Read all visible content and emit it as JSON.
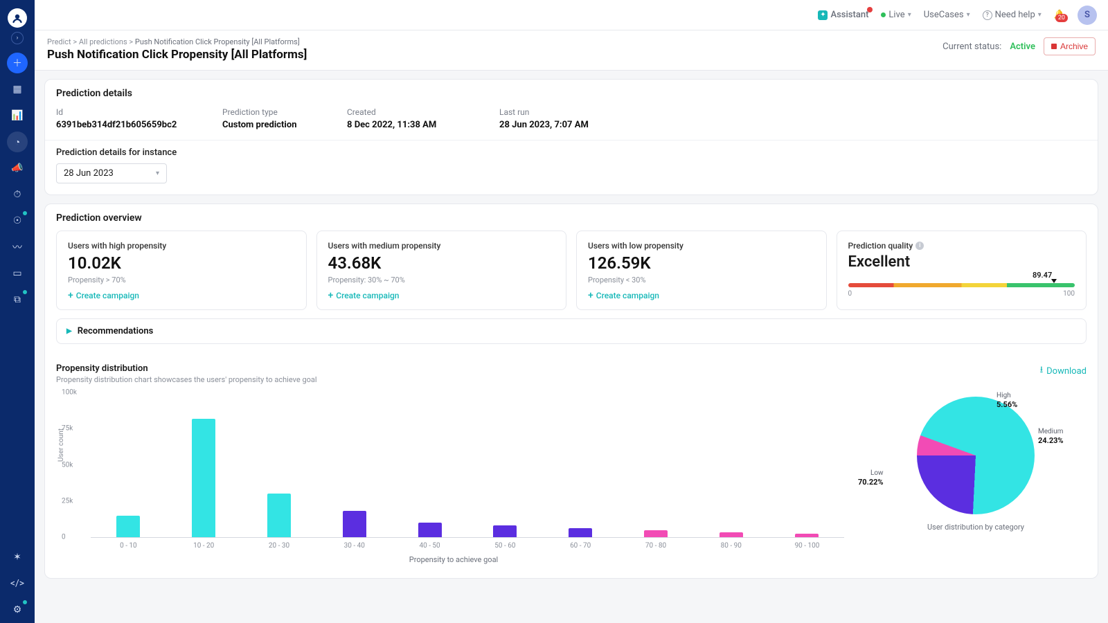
{
  "sidebar": {
    "items": [
      {
        "name": "add-icon",
        "dot": false,
        "highlight": true
      },
      {
        "name": "dashboard-icon",
        "dot": false
      },
      {
        "name": "analytics-icon",
        "dot": false
      },
      {
        "name": "predict-icon",
        "dot": false,
        "active": true
      },
      {
        "name": "announce-icon",
        "dot": false
      },
      {
        "name": "timer-icon",
        "dot": false
      },
      {
        "name": "audience-icon",
        "dot": true
      },
      {
        "name": "trend-icon",
        "dot": false
      },
      {
        "name": "file-icon",
        "dot": false
      },
      {
        "name": "versions-icon",
        "dot": true
      }
    ],
    "bottom": [
      {
        "name": "apps-icon"
      },
      {
        "name": "code-icon"
      },
      {
        "name": "gear-icon",
        "dot": true
      }
    ]
  },
  "topbar": {
    "assistant": "Assistant",
    "live": "Live",
    "usecases": "UseCases",
    "need_help": "Need help",
    "notifications_count": "20",
    "avatar_initial": "S"
  },
  "breadcrumb": {
    "items": [
      "Predict",
      "All predictions"
    ],
    "current": "Push Notification Click Propensity [All Platforms]"
  },
  "page_title": "Push Notification Click Propensity [All Platforms]",
  "status": {
    "label": "Current status:",
    "value": "Active"
  },
  "archive_label": "Archive",
  "details": {
    "section": "Prediction details",
    "id_label": "Id",
    "id": "6391beb314df21b605659bc2",
    "type_label": "Prediction type",
    "type": "Custom prediction",
    "created_label": "Created",
    "created": "8 Dec 2022, 11:38 AM",
    "lastrun_label": "Last run",
    "lastrun": "28 Jun 2023, 7:07 AM",
    "instance_label": "Prediction details for instance",
    "instance_selected": "28 Jun 2023"
  },
  "overview": {
    "section": "Prediction overview",
    "cards": [
      {
        "title": "Users with high propensity",
        "value": "10.02K",
        "sub": "Propensity > 70%",
        "action": "Create campaign"
      },
      {
        "title": "Users with medium propensity",
        "value": "43.68K",
        "sub": "Propensity: 30% ~ 70%",
        "action": "Create campaign"
      },
      {
        "title": "Users with low propensity",
        "value": "126.59K",
        "sub": "Propensity < 30%",
        "action": "Create campaign"
      }
    ],
    "quality": {
      "title": "Prediction quality",
      "value_text": "Excellent",
      "score": "89.47",
      "score_pct": 89.47,
      "min": "0",
      "max": "100",
      "gradient_stops": [
        "#e54b3b",
        "#f0a92e",
        "#f3d43a",
        "#39c36c"
      ]
    },
    "recommendations": "Recommendations"
  },
  "distribution": {
    "title": "Propensity distribution",
    "desc": "Propensity distribution chart showcases the users' propensity to achieve goal",
    "download": "Download",
    "bar_chart": {
      "type": "bar",
      "y_label": "User count",
      "x_label": "Propensity to achieve goal",
      "y_ticks": [
        "0",
        "25k",
        "50k",
        "75k",
        "100k"
      ],
      "y_max": 100,
      "categories": [
        "0 - 10",
        "10 - 20",
        "20 - 30",
        "30 - 40",
        "40 - 50",
        "50 - 60",
        "60 - 70",
        "70 - 80",
        "80 - 90",
        "90 - 100"
      ],
      "values": [
        15,
        82,
        30,
        18,
        10,
        8,
        6,
        5,
        3.5,
        2.5
      ],
      "colors": [
        "#33e4e4",
        "#33e4e4",
        "#33e4e4",
        "#5b2ee0",
        "#5b2ee0",
        "#5b2ee0",
        "#5b2ee0",
        "#f24bb5",
        "#f24bb5",
        "#f24bb5"
      ],
      "axis_color": "#d5d8df",
      "tick_color": "#8a8f99",
      "tick_fontsize": 10
    },
    "pie": {
      "type": "pie",
      "caption": "User distribution by category",
      "slices": [
        {
          "label": "Low",
          "pct": "70.22%",
          "value": 70.22,
          "color": "#33e4e4"
        },
        {
          "label": "Medium",
          "pct": "24.23%",
          "value": 24.23,
          "color": "#5b2ee0"
        },
        {
          "label": "High",
          "pct": "5.56%",
          "value": 5.56,
          "color": "#f24bb5"
        }
      ]
    }
  },
  "colors": {
    "accent": "#17b8b8",
    "sidebar": "#0b2a6b",
    "danger": "#d93636",
    "success": "#2fbf5a"
  }
}
